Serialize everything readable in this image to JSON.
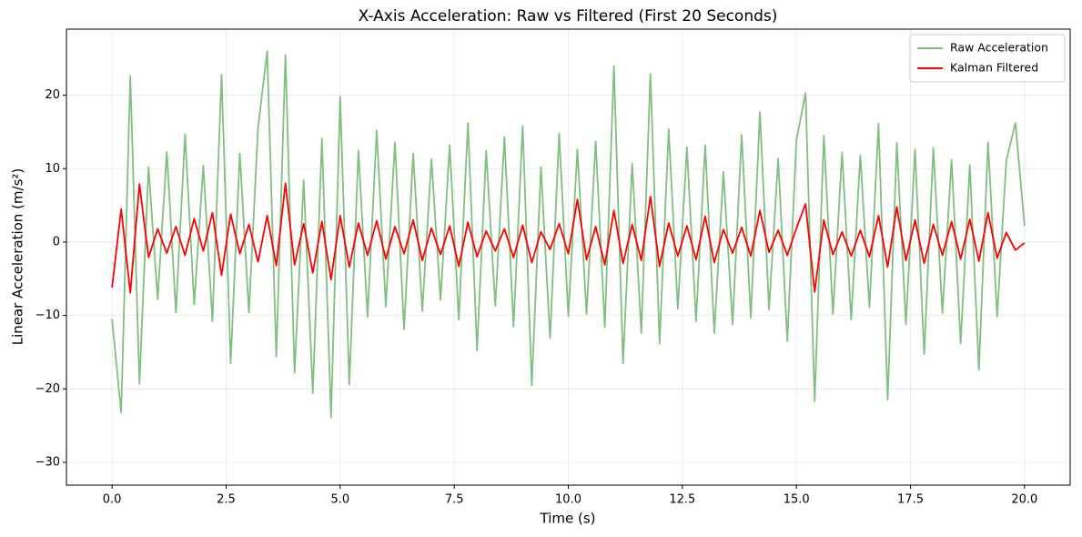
{
  "chart_data": {
    "type": "line",
    "title": "X-Axis Acceleration: Raw vs Filtered (First 20 Seconds)",
    "x_label": "Time (s)",
    "y_label": "Linear Acceleration (m/s²)",
    "x": [
      0,
      0.2,
      0.4,
      0.6,
      0.8,
      1,
      1.2,
      1.4,
      1.6,
      1.8,
      2,
      2.2,
      2.4,
      2.6,
      2.8,
      3,
      3.2,
      3.4,
      3.6,
      3.8,
      4,
      4.2,
      4.4,
      4.6,
      4.8,
      5,
      5.2,
      5.4,
      5.6,
      5.8,
      6,
      6.2,
      6.4,
      6.6,
      6.8,
      7,
      7.2,
      7.4,
      7.6,
      7.8,
      8,
      8.2,
      8.4,
      8.6,
      8.8,
      9,
      9.2,
      9.4,
      9.6,
      9.8,
      10,
      10.2,
      10.4,
      10.6,
      10.8,
      11,
      11.2,
      11.4,
      11.6,
      11.8,
      12,
      12.2,
      12.4,
      12.6,
      12.8,
      13,
      13.2,
      13.4,
      13.6,
      13.8,
      14,
      14.2,
      14.4,
      14.6,
      14.8,
      15,
      15.2,
      15.4,
      15.6,
      15.8,
      16,
      16.2,
      16.4,
      16.6,
      16.8,
      17,
      17.2,
      17.4,
      17.6,
      17.8,
      18,
      18.2,
      18.4,
      18.6,
      18.8,
      19,
      19.2,
      19.4,
      19.6,
      19.8,
      20
    ],
    "series": [
      {
        "name": "Raw Acceleration",
        "color": "#80bf80",
        "values": [
          -10.5,
          -23.2,
          22.6,
          -19.3,
          10.2,
          -7.8,
          12.3,
          -9.6,
          14.7,
          -8.5,
          10.4,
          -10.8,
          22.8,
          -16.5,
          12.1,
          -9.6,
          15.6,
          26.0,
          -15.6,
          25.5,
          -17.8,
          8.4,
          -20.6,
          14.1,
          -23.9,
          19.8,
          -19.4,
          12.5,
          -10.2,
          15.2,
          -8.8,
          13.6,
          -11.9,
          12.1,
          -9.4,
          11.3,
          -7.9,
          13.2,
          -10.6,
          16.2,
          -14.8,
          12.4,
          -8.7,
          14.3,
          -11.5,
          15.8,
          -19.5,
          10.2,
          -13.1,
          14.8,
          -10.1,
          12.6,
          -9.8,
          13.7,
          -11.6,
          24.0,
          -16.5,
          10.7,
          -12.4,
          22.9,
          -13.8,
          15.4,
          -9.1,
          12.9,
          -10.8,
          13.2,
          -12.4,
          9.6,
          -11.2,
          14.6,
          -10.3,
          17.7,
          -9.2,
          11.4,
          -13.5,
          13.9,
          20.3,
          -21.7,
          14.5,
          -9.8,
          12.2,
          -10.6,
          11.8,
          -8.9,
          16.1,
          -21.5,
          13.5,
          -11.2,
          12.6,
          -15.3,
          12.8,
          -9.7,
          11.2,
          -13.8,
          10.5,
          -17.4,
          13.6,
          -10.2,
          11.1,
          16.2,
          2.2
        ]
      },
      {
        "name": "Kalman Filtered",
        "color": "#ff0000",
        "values": [
          -6.2,
          4.5,
          -6.9,
          7.9,
          -2.1,
          1.8,
          -1.5,
          2.1,
          -1.8,
          3.2,
          -1.2,
          4.0,
          -4.5,
          3.8,
          -1.6,
          2.4,
          -2.7,
          3.6,
          -3.2,
          8.0,
          -3.1,
          2.5,
          -4.2,
          2.8,
          -5.1,
          3.6,
          -3.4,
          2.6,
          -1.8,
          2.9,
          -2.3,
          2.1,
          -1.6,
          3.0,
          -2.5,
          1.9,
          -1.7,
          2.2,
          -3.3,
          2.7,
          -2.0,
          1.5,
          -1.2,
          1.8,
          -2.1,
          2.3,
          -2.8,
          1.4,
          -1.0,
          2.5,
          -1.6,
          5.8,
          -2.4,
          2.1,
          -3.1,
          4.3,
          -2.9,
          2.4,
          -2.5,
          6.2,
          -3.3,
          2.6,
          -1.9,
          2.2,
          -2.4,
          3.5,
          -2.8,
          1.7,
          -1.5,
          2.0,
          -1.9,
          4.3,
          -1.4,
          1.6,
          -1.8,
          1.9,
          5.2,
          -6.8,
          3.0,
          -1.7,
          1.4,
          -1.9,
          1.6,
          -2.0,
          3.6,
          -3.4,
          4.8,
          -2.5,
          3.0,
          -2.9,
          2.4,
          -1.8,
          2.8,
          -2.3,
          3.1,
          -2.6,
          4.0,
          -2.2,
          1.3,
          -1.1,
          -0.1
        ]
      }
    ],
    "xlim": [
      -1.0,
      21.0
    ],
    "ylim": [
      -33.1,
      29.0
    ],
    "xticks": [
      {
        "value": 0,
        "label": "0.0"
      },
      2.5,
      {
        "value": 5,
        "label": "5.0"
      },
      7.5,
      {
        "value": 10,
        "label": "10.0"
      },
      12.5,
      {
        "value": 15,
        "label": "15.0"
      },
      17.5,
      {
        "value": 20,
        "label": "20.0"
      }
    ],
    "yticks": [
      {
        "value": -30,
        "label": "−30"
      },
      {
        "value": -20,
        "label": "−20"
      },
      {
        "value": -10,
        "label": "−10"
      },
      0,
      10,
      20
    ],
    "grid": true,
    "legend": "upper-right"
  }
}
